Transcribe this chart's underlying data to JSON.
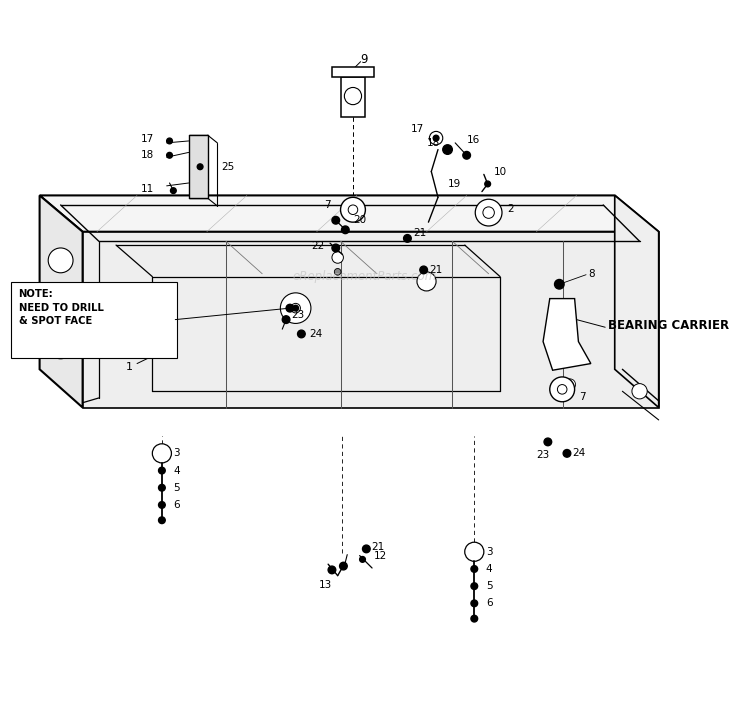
{
  "bg_color": "#ffffff",
  "line_color": "#000000",
  "fig_width": 7.5,
  "fig_height": 7.08,
  "watermark": "eReplacementParts.com",
  "note_text": "NOTE:\nNEED TO DRILL\n& SPOT FACE",
  "bearing_carrier_text": "BEARING CARRIER"
}
